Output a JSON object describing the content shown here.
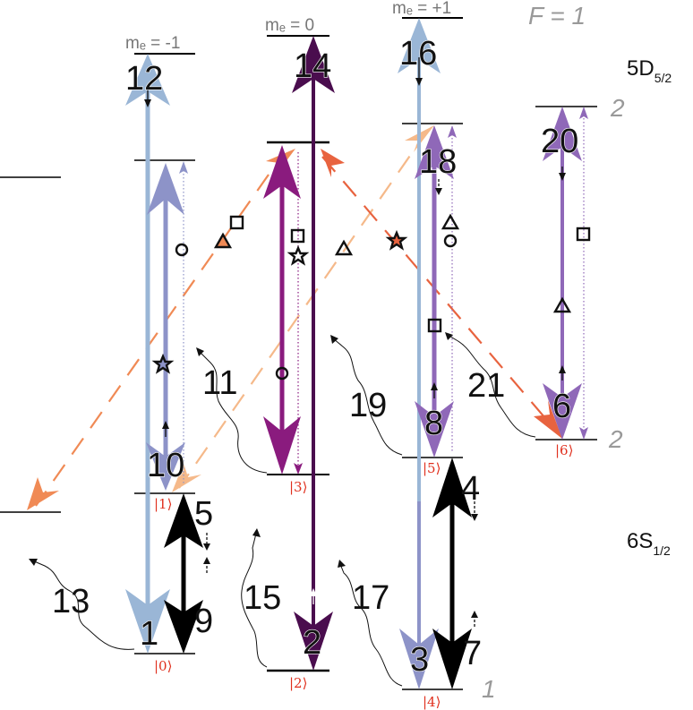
{
  "levels": {
    "upper": "5D",
    "upper_sub": "5/2",
    "lower": "6S",
    "lower_sub": "1/2"
  },
  "zeeman": {
    "minus": "mₑ = -1",
    "zero": "mₑ = 0",
    "plus": "mₑ = +1"
  },
  "hyperfine": {
    "F_title": "F = 1",
    "upper_right": "2",
    "mid_right": "2",
    "lower_right": "1"
  },
  "kets": [
    "|0⟩",
    "|1⟩",
    "|2⟩",
    "|3⟩",
    "|4⟩",
    "|5⟩",
    "|6⟩"
  ],
  "transitions": [
    "1",
    "2",
    "3",
    "4",
    "5",
    "6",
    "7",
    "8",
    "9",
    "10",
    "11",
    "12",
    "13",
    "14",
    "15",
    "16",
    "17",
    "18",
    "19",
    "20",
    "21"
  ],
  "colors": {
    "light_blue": "#9ab6d6",
    "periwinkle": "#8d93c8",
    "dark_purple": "#4a0d4e",
    "magenta": "#8a1b7e",
    "violet": "#8f68b8",
    "black": "#000000",
    "orange": "#f08a55",
    "peach": "#f5b98a",
    "red_orange": "#e8633f",
    "ket_red": "#e0301e"
  }
}
